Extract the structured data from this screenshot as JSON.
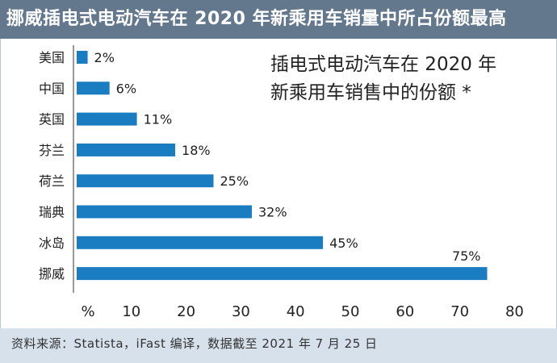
{
  "header": {
    "title": "挪威插电式电动汽车在 2020 年新乘用车销量中所占份额最高"
  },
  "chart_data": {
    "type": "bar",
    "orientation": "horizontal",
    "title_lines": [
      "插电式电动汽车在 2020 年",
      "新乘用车销售中的份额 *"
    ],
    "categories": [
      "美国",
      "中国",
      "英国",
      "芬兰",
      "荷兰",
      "瑞典",
      "冰岛",
      "挪威"
    ],
    "values": [
      2,
      6,
      11,
      18,
      25,
      32,
      45,
      75
    ],
    "value_labels": [
      "2%",
      "6%",
      "11%",
      "18%",
      "25%",
      "32%",
      "45%",
      "75%"
    ],
    "x_ticks": [
      "%",
      "10",
      "20",
      "30",
      "40",
      "50",
      "60",
      "70",
      "80"
    ],
    "xlim": [
      0,
      85
    ],
    "grid": false,
    "bar_color": "#1a7cc1"
  },
  "footer": {
    "source": "资料来源：Statista，iFast 编译，数据截至 2021 年 7 月 25 日"
  }
}
